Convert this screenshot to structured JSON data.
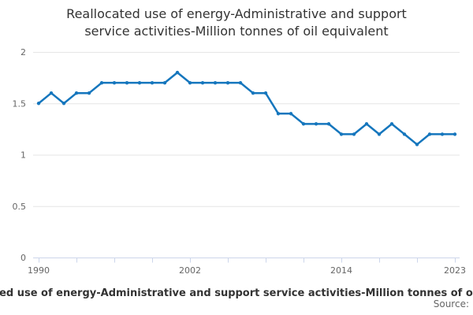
{
  "title": {
    "line1": "Reallocated use of energy-Administrative and support",
    "line2": "service activities-Million tonnes of oil equivalent"
  },
  "legend": {
    "label": "Reallocated use of energy-Administrative and support service activities-Million tonnes of oil equivalent"
  },
  "source_label": "Source:",
  "colors": {
    "series": "#1576bd",
    "grid": "#e6e6e6",
    "axis": "#ccd6eb",
    "text_muted": "#666666",
    "text_dark": "#333333"
  },
  "chart_data": {
    "type": "line",
    "title": "Reallocated use of energy-Administrative and support service activities-Million tonnes of oil equivalent",
    "xlabel": "",
    "ylabel": "",
    "ylim": [
      0,
      2
    ],
    "grid": true,
    "legend_position": "bottom",
    "y_ticks": [
      0,
      0.5,
      1,
      1.5,
      2
    ],
    "x_labeled_ticks": [
      1990,
      2002,
      2014,
      2023
    ],
    "x_tick_interval": 3,
    "x": [
      1990,
      1991,
      1992,
      1993,
      1994,
      1995,
      1996,
      1997,
      1998,
      1999,
      2000,
      2001,
      2002,
      2003,
      2004,
      2005,
      2006,
      2007,
      2008,
      2009,
      2010,
      2011,
      2012,
      2013,
      2014,
      2015,
      2016,
      2017,
      2018,
      2019,
      2020,
      2021,
      2022,
      2023
    ],
    "values": [
      1.5,
      1.6,
      1.5,
      1.6,
      1.6,
      1.7,
      1.7,
      1.7,
      1.7,
      1.7,
      1.7,
      1.8,
      1.7,
      1.7,
      1.7,
      1.7,
      1.7,
      1.6,
      1.6,
      1.4,
      1.4,
      1.3,
      1.3,
      1.3,
      1.2,
      1.2,
      1.3,
      1.2,
      1.3,
      1.2,
      1.1,
      1.2,
      1.2,
      1.2
    ]
  }
}
